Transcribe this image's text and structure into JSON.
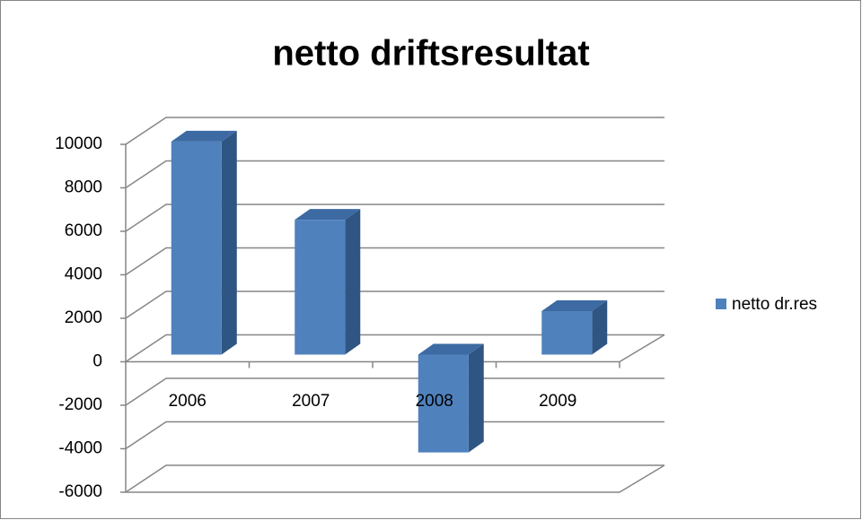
{
  "chart_data": {
    "type": "bar3d",
    "title": "netto driftsresultat",
    "categories": [
      "2006",
      "2007",
      "2008",
      "2009"
    ],
    "series": [
      {
        "name": "netto dr.res",
        "color": "#4f81bd",
        "values": [
          9800,
          6200,
          -4500,
          2000
        ]
      }
    ],
    "ylim": [
      -6000,
      10000
    ],
    "yticks": [
      -6000,
      -4000,
      -2000,
      0,
      2000,
      4000,
      6000,
      8000,
      10000
    ],
    "grid": true,
    "legend": "right"
  }
}
